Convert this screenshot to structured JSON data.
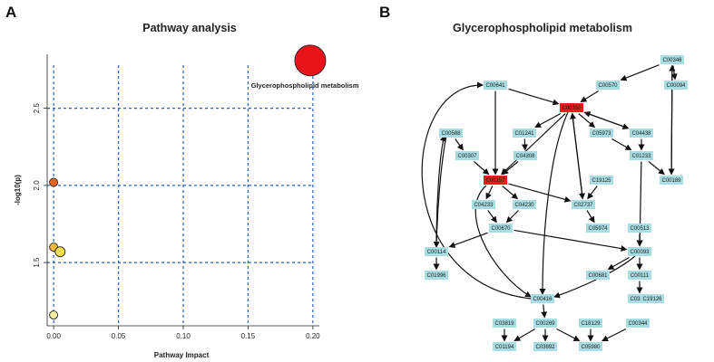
{
  "panels": {
    "a_letter": "A",
    "b_letter": "B"
  },
  "chart_data": {
    "type": "scatter",
    "title": "Pathway analysis",
    "xlabel": "Pathway Impact",
    "ylabel": "-log10(p)",
    "xlim": [
      -0.005,
      0.205
    ],
    "ylim": [
      1.09,
      2.85
    ],
    "x_ticks": [
      0.0,
      0.05,
      0.1,
      0.15,
      0.2
    ],
    "x_tick_labels": [
      "0.00",
      "0.05",
      "0.10",
      "0.15",
      "0.20"
    ],
    "y_ticks": [
      1.5,
      2.0,
      2.5
    ],
    "y_tick_labels": [
      "1.5",
      "2.0",
      "2.5"
    ],
    "grid": "dashed",
    "points": [
      {
        "x": 0.198,
        "y": 2.81,
        "size": 34,
        "color": "#e8141a",
        "label": "Glycerophospholipid metabolism"
      },
      {
        "x": 0.0,
        "y": 2.02,
        "size": 9,
        "color": "#e8651c",
        "label": ""
      },
      {
        "x": 0.0,
        "y": 1.6,
        "size": 9,
        "color": "#f4b93a",
        "label": ""
      },
      {
        "x": 0.005,
        "y": 1.57,
        "size": 11,
        "color": "#f3df46",
        "label": ""
      },
      {
        "x": 0.0,
        "y": 1.16,
        "size": 9,
        "color": "#f5f0a8",
        "label": ""
      }
    ]
  },
  "network": {
    "title": "Glycerophospholipid metabolism",
    "node_color": "#a8dde3",
    "highlight_color": "#f01a1a",
    "nodes": [
      {
        "id": "C00641",
        "hl": false
      },
      {
        "id": "C00570",
        "hl": false
      },
      {
        "id": "C00346",
        "hl": false
      },
      {
        "id": "C00094",
        "hl": false
      },
      {
        "id": "C00350",
        "hl": true
      },
      {
        "id": "C00588",
        "hl": false
      },
      {
        "id": "C01241",
        "hl": false
      },
      {
        "id": "C05973",
        "hl": false
      },
      {
        "id": "C04438",
        "hl": false
      },
      {
        "id": "C00307",
        "hl": false
      },
      {
        "id": "C04308",
        "hl": false
      },
      {
        "id": "C01233",
        "hl": false
      },
      {
        "id": "C00157",
        "hl": true
      },
      {
        "id": "C19125",
        "hl": false
      },
      {
        "id": "C00189",
        "hl": false
      },
      {
        "id": "C04233",
        "hl": false
      },
      {
        "id": "C04230",
        "hl": false
      },
      {
        "id": "C02737",
        "hl": false
      },
      {
        "id": "C05974",
        "hl": false
      },
      {
        "id": "C00670",
        "hl": false
      },
      {
        "id": "C00513",
        "hl": false
      },
      {
        "id": "C00114",
        "hl": false
      },
      {
        "id": "C00093",
        "hl": false
      },
      {
        "id": "C01996",
        "hl": false
      },
      {
        "id": "C00681",
        "hl": false
      },
      {
        "id": "C00111",
        "hl": false
      },
      {
        "id": "C03372",
        "hl": false
      },
      {
        "id": "C19126",
        "hl": false
      },
      {
        "id": "C00416",
        "hl": false
      },
      {
        "id": "C03819",
        "hl": false
      },
      {
        "id": "C00269",
        "hl": false
      },
      {
        "id": "C18129",
        "hl": false
      },
      {
        "id": "C00344",
        "hl": false
      },
      {
        "id": "C01194",
        "hl": false
      },
      {
        "id": "C03892",
        "hl": false
      },
      {
        "id": "C05980",
        "hl": false
      }
    ],
    "edges": [
      [
        "C00641",
        "C00350"
      ],
      [
        "C00570",
        "C00350"
      ],
      [
        "C00346",
        "C00570"
      ],
      [
        "C00346",
        "C00094"
      ],
      [
        "C00346",
        "C00189"
      ],
      [
        "C00189",
        "C00346"
      ],
      [
        "C00641",
        "C00157"
      ],
      [
        "C00350",
        "C05973"
      ],
      [
        "C00350",
        "C04438"
      ],
      [
        "C04438",
        "C00350"
      ],
      [
        "C00350",
        "C01241"
      ],
      [
        "C00350",
        "C02737"
      ],
      [
        "C02737",
        "C00350"
      ],
      [
        "C00350",
        "C00416"
      ],
      [
        "C00350",
        "C00157"
      ],
      [
        "C01241",
        "C04308"
      ],
      [
        "C04308",
        "C00157"
      ],
      [
        "C00588",
        "C00307"
      ],
      [
        "C00307",
        "C00157"
      ],
      [
        "C05973",
        "C01233"
      ],
      [
        "C04438",
        "C01233"
      ],
      [
        "C01233",
        "C00189"
      ],
      [
        "C01233",
        "C00093"
      ],
      [
        "C00157",
        "C04233"
      ],
      [
        "C00157",
        "C04230"
      ],
      [
        "C00157",
        "C02737"
      ],
      [
        "C00157",
        "C00416"
      ],
      [
        "C19125",
        "C02737"
      ],
      [
        "C02737",
        "C05974"
      ],
      [
        "C04233",
        "C00670"
      ],
      [
        "C04230",
        "C00670"
      ],
      [
        "C00670",
        "C00114"
      ],
      [
        "C00670",
        "C00093"
      ],
      [
        "C00513",
        "C00093"
      ],
      [
        "C00093",
        "C00681"
      ],
      [
        "C00093",
        "C00111"
      ],
      [
        "C00093",
        "C00416"
      ],
      [
        "C00111",
        "C03372"
      ],
      [
        "C00114",
        "C01996"
      ],
      [
        "C00114",
        "C00588"
      ],
      [
        "C00588",
        "C00114"
      ],
      [
        "C00416",
        "C00641"
      ],
      [
        "C00416",
        "C00269"
      ],
      [
        "C00269",
        "C01194"
      ],
      [
        "C00269",
        "C03892"
      ],
      [
        "C00269",
        "C05980"
      ],
      [
        "C18129",
        "C05980"
      ],
      [
        "C00344",
        "C05980"
      ],
      [
        "C03819",
        "C01194"
      ]
    ]
  }
}
